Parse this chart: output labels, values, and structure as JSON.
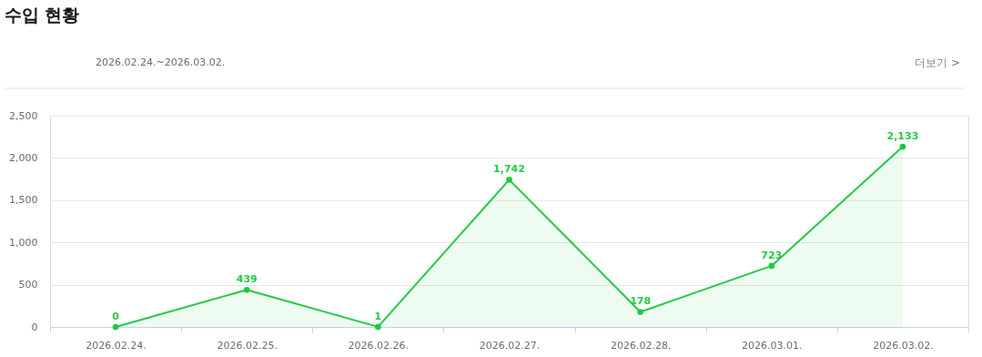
{
  "chart_data": {
    "type": "area",
    "title": "수입 현황",
    "subtitle": "2026.02.24.~2026.03.02.",
    "annotations": [
      "더보기 >"
    ],
    "categories": [
      "2026.02.24.",
      "2026.02.25.",
      "2026.02.26.",
      "2026.02.27.",
      "2026.02.28.",
      "2026.03.01.",
      "2026.03.02."
    ],
    "series": [
      {
        "color": "#22c745",
        "values": [
          0,
          439,
          1,
          1742,
          178,
          723,
          2133
        ],
        "value_labels": [
          "0",
          "439",
          "1",
          "1,742",
          "178",
          "723",
          "2,133"
        ]
      }
    ],
    "ylim": [
      0,
      2500
    ],
    "yticks": [
      0,
      {
        "value": 500,
        "label": "500"
      },
      {
        "value": 1000,
        "label": "1,000"
      },
      {
        "value": 1500,
        "label": "1,500"
      },
      {
        "value": 2000,
        "label": "2,000"
      },
      {
        "value": 2500,
        "label": "2,500"
      }
    ],
    "grid": "y",
    "marker": "circle",
    "line_style": "solid"
  }
}
